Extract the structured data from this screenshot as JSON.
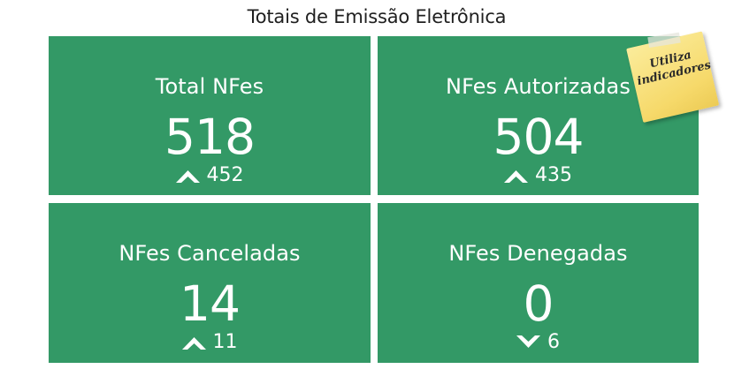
{
  "header": {
    "title": "Totais de Emissão Eletrônica"
  },
  "tiles": [
    {
      "label": "Total NFes",
      "value": "518",
      "trend": "up",
      "trend_icon": "chevron-up-icon",
      "trend_value": "452"
    },
    {
      "label": "NFes Autorizadas",
      "value": "504",
      "trend": "up",
      "trend_icon": "chevron-up-icon",
      "trend_value": "435"
    },
    {
      "label": "NFes Canceladas",
      "value": "14",
      "trend": "up",
      "trend_icon": "chevron-up-icon",
      "trend_value": "11"
    },
    {
      "label": "NFes Denegadas",
      "value": "0",
      "trend": "down",
      "trend_icon": "chevron-down-icon",
      "trend_value": "6"
    }
  ],
  "sticky_note": {
    "line1": "Utiliza",
    "line2": "indicadores"
  },
  "colors": {
    "tile_bg": "#339966",
    "tile_text": "#ffffff",
    "note_bg": "#f6d96a"
  }
}
